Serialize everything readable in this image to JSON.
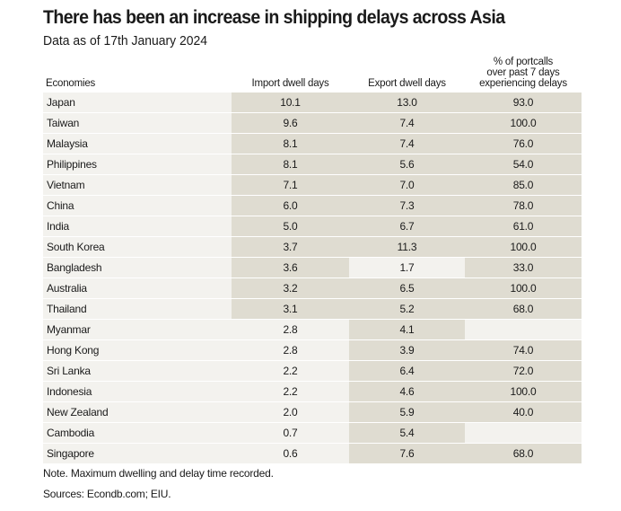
{
  "colors": {
    "highlight": "#dfdcd1",
    "base": "#f3f2ee"
  },
  "chart_data": {
    "type": "table",
    "title": "There has been an increase in shipping delays across Asia",
    "subtitle": "Data as of 17th January 2024",
    "columns": [
      "Economies",
      "Import dwell days",
      "Export dwell days",
      "% of portcalls over past 7 days experiencing delays"
    ],
    "header_pct_lines": [
      "% of portcalls",
      "over past 7 days",
      "experiencing delays"
    ],
    "rows": [
      {
        "economy": "Japan",
        "import": "10.1",
        "export": "13.0",
        "pct": "93.0",
        "hl": [
          1,
          1,
          1
        ]
      },
      {
        "economy": "Taiwan",
        "import": "9.6",
        "export": "7.4",
        "pct": "100.0",
        "hl": [
          1,
          1,
          1
        ]
      },
      {
        "economy": "Malaysia",
        "import": "8.1",
        "export": "7.4",
        "pct": "76.0",
        "hl": [
          1,
          1,
          1
        ]
      },
      {
        "economy": "Philippines",
        "import": "8.1",
        "export": "5.6",
        "pct": "54.0",
        "hl": [
          1,
          1,
          1
        ]
      },
      {
        "economy": "Vietnam",
        "import": "7.1",
        "export": "7.0",
        "pct": "85.0",
        "hl": [
          1,
          1,
          1
        ]
      },
      {
        "economy": "China",
        "import": "6.0",
        "export": "7.3",
        "pct": "78.0",
        "hl": [
          1,
          1,
          1
        ]
      },
      {
        "economy": "India",
        "import": "5.0",
        "export": "6.7",
        "pct": "61.0",
        "hl": [
          1,
          1,
          1
        ]
      },
      {
        "economy": "South Korea",
        "import": "3.7",
        "export": "11.3",
        "pct": "100.0",
        "hl": [
          1,
          1,
          1
        ]
      },
      {
        "economy": "Bangladesh",
        "import": "3.6",
        "export": "1.7",
        "pct": "33.0",
        "hl": [
          1,
          0,
          1
        ]
      },
      {
        "economy": "Australia",
        "import": "3.2",
        "export": "6.5",
        "pct": "100.0",
        "hl": [
          1,
          1,
          1
        ]
      },
      {
        "economy": "Thailand",
        "import": "3.1",
        "export": "5.2",
        "pct": "68.0",
        "hl": [
          1,
          1,
          1
        ]
      },
      {
        "economy": "Myanmar",
        "import": "2.8",
        "export": "4.1",
        "pct": "",
        "hl": [
          0,
          1,
          0
        ]
      },
      {
        "economy": "Hong Kong",
        "import": "2.8",
        "export": "3.9",
        "pct": "74.0",
        "hl": [
          0,
          1,
          1
        ]
      },
      {
        "economy": "Sri Lanka",
        "import": "2.2",
        "export": "6.4",
        "pct": "72.0",
        "hl": [
          0,
          1,
          1
        ]
      },
      {
        "economy": "Indonesia",
        "import": "2.2",
        "export": "4.6",
        "pct": "100.0",
        "hl": [
          0,
          1,
          1
        ]
      },
      {
        "economy": "New Zealand",
        "import": "2.0",
        "export": "5.9",
        "pct": "40.0",
        "hl": [
          0,
          1,
          1
        ]
      },
      {
        "economy": "Cambodia",
        "import": "0.7",
        "export": "5.4",
        "pct": "",
        "hl": [
          0,
          1,
          0
        ]
      },
      {
        "economy": "Singapore",
        "import": "0.6",
        "export": "7.6",
        "pct": "68.0",
        "hl": [
          0,
          1,
          1
        ]
      }
    ],
    "note": "Note. Maximum dwelling and delay time recorded.",
    "source": "Sources: Econdb.com; EIU."
  }
}
